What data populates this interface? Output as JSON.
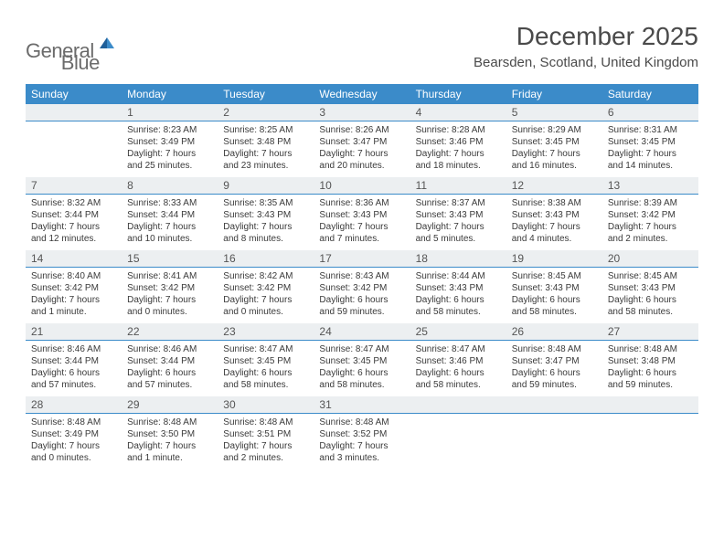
{
  "colors": {
    "header_bg": "#3b8bc9",
    "header_text": "#ffffff",
    "daynum_bg": "#eceff1",
    "daynum_border": "#3b8bc9",
    "body_text": "#3a3a3a",
    "logo_gray": "#6b6b6b",
    "logo_blue": "#2f7ec0",
    "title_color": "#4a4a4a",
    "background": "#ffffff"
  },
  "typography": {
    "title_fontsize": 28,
    "location_fontsize": 15,
    "header_fontsize": 12,
    "daynum_fontsize": 12,
    "cell_fontsize": 10
  },
  "logo": {
    "text1": "General",
    "text2": "Blue"
  },
  "title": "December 2025",
  "location": "Bearsden, Scotland, United Kingdom",
  "day_names": [
    "Sunday",
    "Monday",
    "Tuesday",
    "Wednesday",
    "Thursday",
    "Friday",
    "Saturday"
  ],
  "weeks": [
    {
      "nums": [
        "",
        "1",
        "2",
        "3",
        "4",
        "5",
        "6"
      ],
      "cells": [
        null,
        {
          "sunrise": "Sunrise: 8:23 AM",
          "sunset": "Sunset: 3:49 PM",
          "d1": "Daylight: 7 hours",
          "d2": "and 25 minutes."
        },
        {
          "sunrise": "Sunrise: 8:25 AM",
          "sunset": "Sunset: 3:48 PM",
          "d1": "Daylight: 7 hours",
          "d2": "and 23 minutes."
        },
        {
          "sunrise": "Sunrise: 8:26 AM",
          "sunset": "Sunset: 3:47 PM",
          "d1": "Daylight: 7 hours",
          "d2": "and 20 minutes."
        },
        {
          "sunrise": "Sunrise: 8:28 AM",
          "sunset": "Sunset: 3:46 PM",
          "d1": "Daylight: 7 hours",
          "d2": "and 18 minutes."
        },
        {
          "sunrise": "Sunrise: 8:29 AM",
          "sunset": "Sunset: 3:45 PM",
          "d1": "Daylight: 7 hours",
          "d2": "and 16 minutes."
        },
        {
          "sunrise": "Sunrise: 8:31 AM",
          "sunset": "Sunset: 3:45 PM",
          "d1": "Daylight: 7 hours",
          "d2": "and 14 minutes."
        }
      ]
    },
    {
      "nums": [
        "7",
        "8",
        "9",
        "10",
        "11",
        "12",
        "13"
      ],
      "cells": [
        {
          "sunrise": "Sunrise: 8:32 AM",
          "sunset": "Sunset: 3:44 PM",
          "d1": "Daylight: 7 hours",
          "d2": "and 12 minutes."
        },
        {
          "sunrise": "Sunrise: 8:33 AM",
          "sunset": "Sunset: 3:44 PM",
          "d1": "Daylight: 7 hours",
          "d2": "and 10 minutes."
        },
        {
          "sunrise": "Sunrise: 8:35 AM",
          "sunset": "Sunset: 3:43 PM",
          "d1": "Daylight: 7 hours",
          "d2": "and 8 minutes."
        },
        {
          "sunrise": "Sunrise: 8:36 AM",
          "sunset": "Sunset: 3:43 PM",
          "d1": "Daylight: 7 hours",
          "d2": "and 7 minutes."
        },
        {
          "sunrise": "Sunrise: 8:37 AM",
          "sunset": "Sunset: 3:43 PM",
          "d1": "Daylight: 7 hours",
          "d2": "and 5 minutes."
        },
        {
          "sunrise": "Sunrise: 8:38 AM",
          "sunset": "Sunset: 3:43 PM",
          "d1": "Daylight: 7 hours",
          "d2": "and 4 minutes."
        },
        {
          "sunrise": "Sunrise: 8:39 AM",
          "sunset": "Sunset: 3:42 PM",
          "d1": "Daylight: 7 hours",
          "d2": "and 2 minutes."
        }
      ]
    },
    {
      "nums": [
        "14",
        "15",
        "16",
        "17",
        "18",
        "19",
        "20"
      ],
      "cells": [
        {
          "sunrise": "Sunrise: 8:40 AM",
          "sunset": "Sunset: 3:42 PM",
          "d1": "Daylight: 7 hours",
          "d2": "and 1 minute."
        },
        {
          "sunrise": "Sunrise: 8:41 AM",
          "sunset": "Sunset: 3:42 PM",
          "d1": "Daylight: 7 hours",
          "d2": "and 0 minutes."
        },
        {
          "sunrise": "Sunrise: 8:42 AM",
          "sunset": "Sunset: 3:42 PM",
          "d1": "Daylight: 7 hours",
          "d2": "and 0 minutes."
        },
        {
          "sunrise": "Sunrise: 8:43 AM",
          "sunset": "Sunset: 3:42 PM",
          "d1": "Daylight: 6 hours",
          "d2": "and 59 minutes."
        },
        {
          "sunrise": "Sunrise: 8:44 AM",
          "sunset": "Sunset: 3:43 PM",
          "d1": "Daylight: 6 hours",
          "d2": "and 58 minutes."
        },
        {
          "sunrise": "Sunrise: 8:45 AM",
          "sunset": "Sunset: 3:43 PM",
          "d1": "Daylight: 6 hours",
          "d2": "and 58 minutes."
        },
        {
          "sunrise": "Sunrise: 8:45 AM",
          "sunset": "Sunset: 3:43 PM",
          "d1": "Daylight: 6 hours",
          "d2": "and 58 minutes."
        }
      ]
    },
    {
      "nums": [
        "21",
        "22",
        "23",
        "24",
        "25",
        "26",
        "27"
      ],
      "cells": [
        {
          "sunrise": "Sunrise: 8:46 AM",
          "sunset": "Sunset: 3:44 PM",
          "d1": "Daylight: 6 hours",
          "d2": "and 57 minutes."
        },
        {
          "sunrise": "Sunrise: 8:46 AM",
          "sunset": "Sunset: 3:44 PM",
          "d1": "Daylight: 6 hours",
          "d2": "and 57 minutes."
        },
        {
          "sunrise": "Sunrise: 8:47 AM",
          "sunset": "Sunset: 3:45 PM",
          "d1": "Daylight: 6 hours",
          "d2": "and 58 minutes."
        },
        {
          "sunrise": "Sunrise: 8:47 AM",
          "sunset": "Sunset: 3:45 PM",
          "d1": "Daylight: 6 hours",
          "d2": "and 58 minutes."
        },
        {
          "sunrise": "Sunrise: 8:47 AM",
          "sunset": "Sunset: 3:46 PM",
          "d1": "Daylight: 6 hours",
          "d2": "and 58 minutes."
        },
        {
          "sunrise": "Sunrise: 8:48 AM",
          "sunset": "Sunset: 3:47 PM",
          "d1": "Daylight: 6 hours",
          "d2": "and 59 minutes."
        },
        {
          "sunrise": "Sunrise: 8:48 AM",
          "sunset": "Sunset: 3:48 PM",
          "d1": "Daylight: 6 hours",
          "d2": "and 59 minutes."
        }
      ]
    },
    {
      "nums": [
        "28",
        "29",
        "30",
        "31",
        "",
        "",
        ""
      ],
      "cells": [
        {
          "sunrise": "Sunrise: 8:48 AM",
          "sunset": "Sunset: 3:49 PM",
          "d1": "Daylight: 7 hours",
          "d2": "and 0 minutes."
        },
        {
          "sunrise": "Sunrise: 8:48 AM",
          "sunset": "Sunset: 3:50 PM",
          "d1": "Daylight: 7 hours",
          "d2": "and 1 minute."
        },
        {
          "sunrise": "Sunrise: 8:48 AM",
          "sunset": "Sunset: 3:51 PM",
          "d1": "Daylight: 7 hours",
          "d2": "and 2 minutes."
        },
        {
          "sunrise": "Sunrise: 8:48 AM",
          "sunset": "Sunset: 3:52 PM",
          "d1": "Daylight: 7 hours",
          "d2": "and 3 minutes."
        },
        null,
        null,
        null
      ]
    }
  ]
}
